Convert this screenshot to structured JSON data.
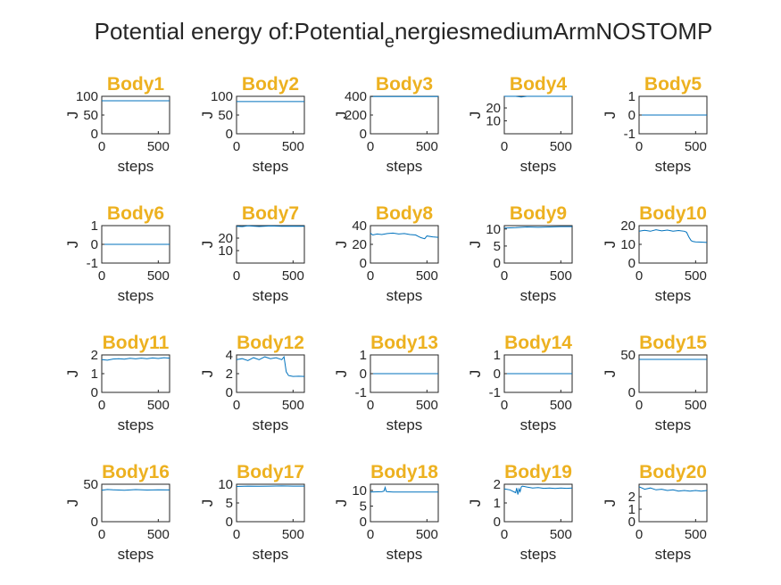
{
  "figure": {
    "title_prefix": "Potential energy of:Potential",
    "title_subscript": "e",
    "title_suffix": "nergiesmediumArmNOSTOMP",
    "line_color": "#0072BD",
    "title_color": "#EDB120"
  },
  "chart_data": [
    {
      "type": "line",
      "title": "Body1",
      "xlabel": "steps",
      "ylabel": "J",
      "xlim": [
        0,
        600
      ],
      "ylim": [
        0,
        100
      ],
      "yticks": [
        "0",
        "50",
        "100"
      ],
      "xticks": [
        "0",
        "500"
      ],
      "x": [
        0,
        600
      ],
      "y": [
        88,
        88
      ]
    },
    {
      "type": "line",
      "title": "Body2",
      "xlabel": "steps",
      "ylabel": "J",
      "xlim": [
        0,
        600
      ],
      "ylim": [
        0,
        100
      ],
      "yticks": [
        "0",
        "50",
        "100"
      ],
      "xticks": [
        "0",
        "500"
      ],
      "x": [
        0,
        600
      ],
      "y": [
        86,
        86
      ]
    },
    {
      "type": "line",
      "title": "Body3",
      "xlabel": "steps",
      "ylabel": "J",
      "xlim": [
        0,
        600
      ],
      "ylim": [
        0,
        400
      ],
      "yticks": [
        "0",
        "200",
        "400"
      ],
      "xticks": [
        "0",
        "500"
      ],
      "x": [
        0,
        600
      ],
      "y": [
        398,
        398
      ]
    },
    {
      "type": "line",
      "title": "Body4",
      "xlabel": "steps",
      "ylabel": "J",
      "xlim": [
        0,
        600
      ],
      "ylim": [
        0,
        29
      ],
      "yticks": [
        "10",
        "20"
      ],
      "ytickvals": [
        10,
        20
      ],
      "xticks": [
        "0",
        "500"
      ],
      "x": [
        0,
        100,
        150,
        200,
        600
      ],
      "y": [
        29,
        29,
        28.5,
        29,
        29
      ]
    },
    {
      "type": "line",
      "title": "Body5",
      "xlabel": "steps",
      "ylabel": "J",
      "xlim": [
        0,
        600
      ],
      "ylim": [
        -1,
        1
      ],
      "yticks": [
        "-1",
        "0",
        "1"
      ],
      "xticks": [
        "0",
        "500"
      ],
      "x": [
        0,
        600
      ],
      "y": [
        0,
        0
      ]
    },
    {
      "type": "line",
      "title": "Body6",
      "xlabel": "steps",
      "ylabel": "J",
      "xlim": [
        0,
        600
      ],
      "ylim": [
        -1,
        1
      ],
      "yticks": [
        "-1",
        "0",
        "1"
      ],
      "xticks": [
        "0",
        "500"
      ],
      "x": [
        0,
        600
      ],
      "y": [
        0,
        0
      ]
    },
    {
      "type": "line",
      "title": "Body7",
      "xlabel": "steps",
      "ylabel": "J",
      "xlim": [
        0,
        600
      ],
      "ylim": [
        0,
        30
      ],
      "yticks": [
        "10",
        "20"
      ],
      "ytickvals": [
        10,
        20
      ],
      "xticks": [
        "0",
        "500"
      ],
      "x": [
        0,
        50,
        100,
        200,
        300,
        400,
        500,
        600
      ],
      "y": [
        29.5,
        29.2,
        29.8,
        29.3,
        29.7,
        29.4,
        29.6,
        29.5
      ]
    },
    {
      "type": "line",
      "title": "Body8",
      "xlabel": "steps",
      "ylabel": "J",
      "xlim": [
        0,
        600
      ],
      "ylim": [
        0,
        40
      ],
      "yticks": [
        "0",
        "20",
        "40"
      ],
      "xticks": [
        "0",
        "500"
      ],
      "x": [
        0,
        20,
        60,
        100,
        150,
        200,
        250,
        300,
        350,
        400,
        430,
        450,
        480,
        500,
        550,
        600
      ],
      "y": [
        32,
        30,
        31,
        30.5,
        31.5,
        32,
        31,
        31.5,
        30.5,
        30,
        28,
        27,
        26,
        29,
        28,
        27.5
      ]
    },
    {
      "type": "line",
      "title": "Body9",
      "xlabel": "steps",
      "ylabel": "J",
      "xlim": [
        0,
        600
      ],
      "ylim": [
        0,
        11
      ],
      "yticks": [
        "0",
        "5",
        "10"
      ],
      "xticks": [
        "0",
        "500"
      ],
      "x": [
        0,
        100,
        200,
        300,
        400,
        500,
        600
      ],
      "y": [
        10.3,
        10.4,
        10.6,
        10.5,
        10.6,
        10.7,
        10.7
      ]
    },
    {
      "type": "line",
      "title": "Body10",
      "xlabel": "steps",
      "ylabel": "J",
      "xlim": [
        0,
        600
      ],
      "ylim": [
        0,
        20
      ],
      "yticks": [
        "0",
        "10",
        "20"
      ],
      "xticks": [
        "0",
        "500"
      ],
      "x": [
        0,
        50,
        100,
        150,
        200,
        250,
        300,
        350,
        400,
        420,
        440,
        460,
        480,
        500,
        550,
        600
      ],
      "y": [
        17,
        17.5,
        17,
        17.8,
        17.2,
        17.6,
        17,
        17.4,
        17,
        16.5,
        14,
        12,
        11.5,
        11.3,
        11.2,
        11
      ]
    },
    {
      "type": "line",
      "title": "Body11",
      "xlabel": "steps",
      "ylabel": "J",
      "xlim": [
        0,
        600
      ],
      "ylim": [
        0,
        2
      ],
      "yticks": [
        "0",
        "1",
        "2"
      ],
      "xticks": [
        "0",
        "500"
      ],
      "x": [
        0,
        50,
        100,
        150,
        200,
        250,
        300,
        350,
        400,
        450,
        500,
        550,
        600
      ],
      "y": [
        1.75,
        1.72,
        1.78,
        1.8,
        1.77,
        1.82,
        1.79,
        1.83,
        1.8,
        1.84,
        1.81,
        1.85,
        1.83
      ]
    },
    {
      "type": "line",
      "title": "Body12",
      "xlabel": "steps",
      "ylabel": "J",
      "xlim": [
        0,
        600
      ],
      "ylim": [
        0,
        4
      ],
      "yticks": [
        "0",
        "2",
        "4"
      ],
      "xticks": [
        "0",
        "500"
      ],
      "x": [
        0,
        50,
        100,
        150,
        200,
        250,
        300,
        350,
        400,
        420,
        440,
        460,
        480,
        500,
        550,
        600
      ],
      "y": [
        3.5,
        3.6,
        3.4,
        3.7,
        3.5,
        3.8,
        3.6,
        3.7,
        3.5,
        3.8,
        2.2,
        1.8,
        1.75,
        1.7,
        1.72,
        1.7
      ]
    },
    {
      "type": "line",
      "title": "Body13",
      "xlabel": "steps",
      "ylabel": "J",
      "xlim": [
        0,
        600
      ],
      "ylim": [
        -1,
        1
      ],
      "yticks": [
        "-1",
        "0",
        "1"
      ],
      "xticks": [
        "0",
        "500"
      ],
      "x": [
        0,
        600
      ],
      "y": [
        0,
        0
      ]
    },
    {
      "type": "line",
      "title": "Body14",
      "xlabel": "steps",
      "ylabel": "J",
      "xlim": [
        0,
        600
      ],
      "ylim": [
        -1,
        1
      ],
      "yticks": [
        "-1",
        "0",
        "1"
      ],
      "xticks": [
        "0",
        "500"
      ],
      "x": [
        0,
        600
      ],
      "y": [
        0,
        0
      ]
    },
    {
      "type": "line",
      "title": "Body15",
      "xlabel": "steps",
      "ylabel": "J",
      "xlim": [
        0,
        600
      ],
      "ylim": [
        0,
        50
      ],
      "yticks": [
        "0",
        "50"
      ],
      "xticks": [
        "0",
        "500"
      ],
      "x": [
        0,
        600
      ],
      "y": [
        44,
        44
      ]
    },
    {
      "type": "line",
      "title": "Body16",
      "xlabel": "steps",
      "ylabel": "J",
      "xlim": [
        0,
        600
      ],
      "ylim": [
        0,
        50
      ],
      "yticks": [
        "0",
        "50"
      ],
      "xticks": [
        "0",
        "500"
      ],
      "x": [
        0,
        50,
        100,
        200,
        300,
        400,
        500,
        600
      ],
      "y": [
        42,
        43,
        42.5,
        42,
        42.8,
        42.3,
        42.6,
        42.4
      ]
    },
    {
      "type": "line",
      "title": "Body17",
      "xlabel": "steps",
      "ylabel": "J",
      "xlim": [
        0,
        600
      ],
      "ylim": [
        0,
        10
      ],
      "yticks": [
        "0",
        "5",
        "10"
      ],
      "xticks": [
        "0",
        "500"
      ],
      "x": [
        0,
        100,
        200,
        300,
        400,
        500,
        600
      ],
      "y": [
        9.4,
        9.5,
        9.45,
        9.5,
        9.55,
        9.5,
        9.5
      ]
    },
    {
      "type": "line",
      "title": "Body18",
      "xlabel": "steps",
      "ylabel": "J",
      "xlim": [
        0,
        600
      ],
      "ylim": [
        0,
        12
      ],
      "yticks": [
        "0",
        "5",
        "10"
      ],
      "xticks": [
        "0",
        "500"
      ],
      "x": [
        0,
        100,
        120,
        130,
        140,
        150,
        200,
        300,
        400,
        500,
        600
      ],
      "y": [
        9.5,
        9.6,
        9.8,
        11,
        9.7,
        9.6,
        9.5,
        9.5,
        9.5,
        9.5,
        9.5
      ]
    },
    {
      "type": "line",
      "title": "Body19",
      "xlabel": "steps",
      "ylabel": "J",
      "xlim": [
        0,
        600
      ],
      "ylim": [
        0,
        2
      ],
      "yticks": [
        "0",
        "1",
        "2"
      ],
      "xticks": [
        "0",
        "500"
      ],
      "x": [
        0,
        50,
        100,
        110,
        120,
        130,
        140,
        150,
        160,
        200,
        250,
        300,
        350,
        400,
        450,
        500,
        550,
        600
      ],
      "y": [
        1.75,
        1.7,
        1.55,
        1.8,
        1.45,
        1.75,
        1.6,
        1.85,
        1.9,
        1.85,
        1.8,
        1.82,
        1.78,
        1.8,
        1.77,
        1.8,
        1.78,
        1.8
      ]
    },
    {
      "type": "line",
      "title": "Body20",
      "xlabel": "steps",
      "ylabel": "J",
      "xlim": [
        0,
        600
      ],
      "ylim": [
        0,
        3
      ],
      "yticks": [
        "0",
        "1",
        "2"
      ],
      "xticks": [
        "0",
        "500"
      ],
      "x": [
        0,
        50,
        100,
        150,
        200,
        250,
        300,
        350,
        400,
        450,
        500,
        550,
        600
      ],
      "y": [
        2.8,
        2.6,
        2.7,
        2.55,
        2.6,
        2.5,
        2.55,
        2.45,
        2.5,
        2.45,
        2.5,
        2.45,
        2.5
      ]
    }
  ]
}
